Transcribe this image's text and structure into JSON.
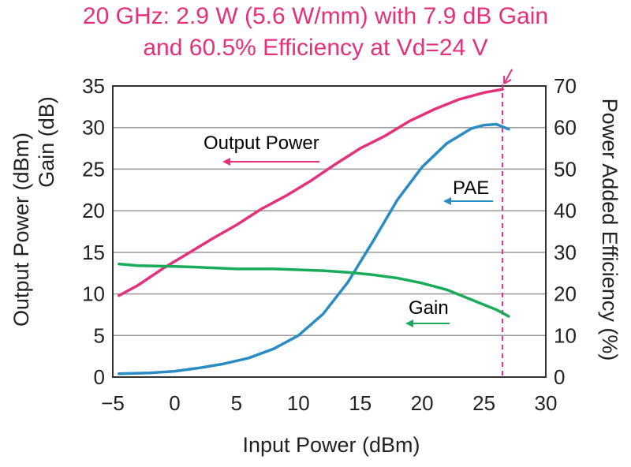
{
  "title_lines": [
    "20 GHz: 2.9 W (5.6 W/mm) with 7.9 dB Gain",
    "and 60.5% Efficiency at Vd=24 V"
  ],
  "chart_data": {
    "type": "line",
    "xlabel": "Input Power (dBm)",
    "ylabel_left_line1": "Output Power (dBm)",
    "ylabel_left_line2": "Gain (dB)",
    "ylabel_right": "Power Added Efficiency (%)",
    "xlim": [
      -5,
      30
    ],
    "ylim_left": [
      0,
      35
    ],
    "ylim_right": [
      0,
      70
    ],
    "x_ticks": [
      "−5",
      "0",
      "5",
      "10",
      "15",
      "20",
      "25",
      "30"
    ],
    "y_left_ticks": [
      "0",
      "5",
      "10",
      "15",
      "20",
      "25",
      "30",
      "35"
    ],
    "y_right_ticks": [
      "0",
      "10",
      "20",
      "30",
      "40",
      "50",
      "60",
      "70"
    ],
    "grid": true,
    "marker_x": 26.5,
    "series": [
      {
        "name": "Output Power",
        "axis": "left",
        "color": "#e4317a",
        "x": [
          -4.5,
          -3,
          -1,
          1,
          3,
          5,
          7,
          9,
          11,
          13,
          15,
          17,
          19,
          21,
          23,
          25,
          26.5
        ],
        "y": [
          9.8,
          11.0,
          13.0,
          14.8,
          16.6,
          18.3,
          20.2,
          21.8,
          23.6,
          25.6,
          27.5,
          29.0,
          30.8,
          32.2,
          33.4,
          34.2,
          34.6
        ]
      },
      {
        "name": "PAE",
        "axis": "right",
        "color": "#2b8cc4",
        "x": [
          -4.5,
          -2,
          0,
          2,
          4,
          6,
          8,
          10,
          12,
          14,
          16,
          18,
          20,
          22,
          24,
          25,
          26,
          27
        ],
        "y": [
          0.8,
          1.0,
          1.4,
          2.2,
          3.2,
          4.6,
          6.8,
          10.0,
          15.2,
          22.8,
          32.5,
          42.6,
          50.5,
          56.2,
          59.8,
          60.6,
          60.8,
          59.6
        ]
      },
      {
        "name": "Gain",
        "axis": "left",
        "color": "#1aab5a",
        "x": [
          -4.5,
          -3,
          0,
          2,
          5,
          8,
          10,
          12,
          14,
          16,
          18,
          20,
          22,
          24,
          26,
          27
        ],
        "y": [
          13.6,
          13.4,
          13.3,
          13.2,
          13.0,
          13.0,
          12.9,
          12.8,
          12.6,
          12.3,
          11.9,
          11.3,
          10.5,
          9.3,
          8.1,
          7.3
        ]
      }
    ],
    "annotations": [
      {
        "text": "Output Power",
        "color": "#e4317a"
      },
      {
        "text": "PAE",
        "color": "#2b8cc4"
      },
      {
        "text": "Gain",
        "color": "#1aab5a"
      }
    ]
  }
}
